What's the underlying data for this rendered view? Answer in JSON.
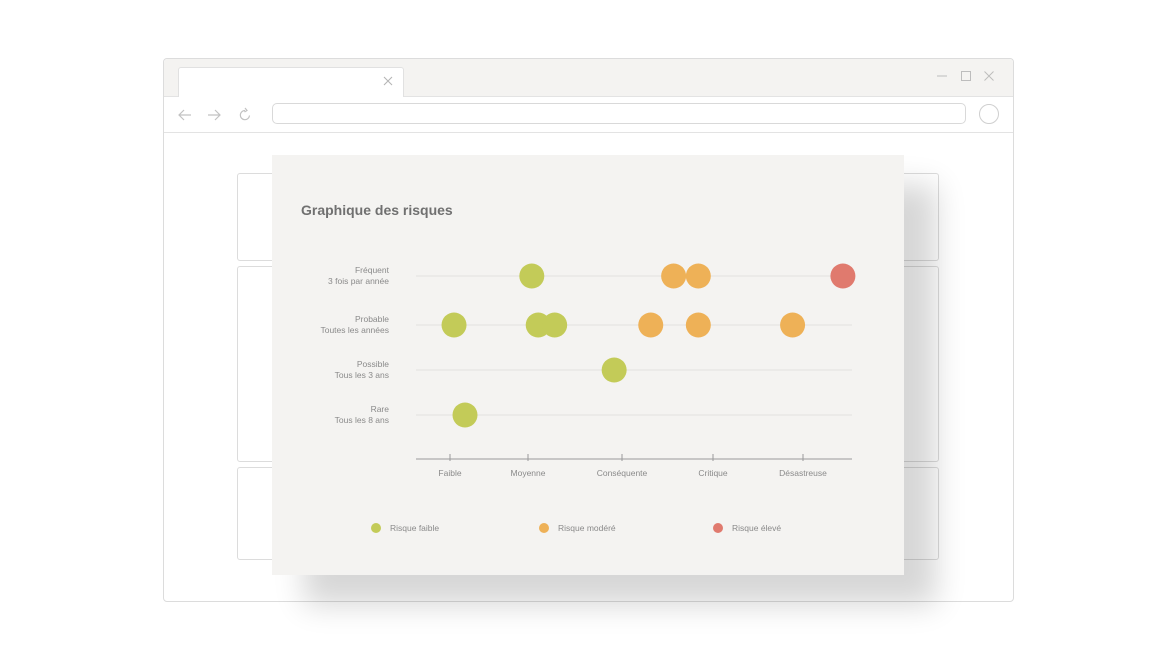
{
  "browser": {
    "icons": [
      "close-icon",
      "minimize-icon",
      "maximize-icon",
      "back-arrow-icon",
      "forward-arrow-icon",
      "reload-icon",
      "profile-icon"
    ]
  },
  "colors": {
    "low": "#c3cb58",
    "moderate": "#eeb157",
    "high": "#e07a6e",
    "grid": "#e2e1df",
    "axis": "#9a9a9a",
    "card_bg": "#f4f3f1"
  },
  "chart_data": {
    "type": "scatter",
    "title": "Graphique des risques",
    "x_categories": [
      "Faible",
      "Moyenne",
      "Conséquente",
      "Critique",
      "Désastreuse"
    ],
    "y_categories": [
      {
        "line1": "Fréquent",
        "line2": "3 fois par année"
      },
      {
        "line1": "Probable",
        "line2": "Toutes les années"
      },
      {
        "line1": "Possible",
        "line2": "Tous les 3 ans"
      },
      {
        "line1": "Rare",
        "line2": "Tous les 8 ans"
      }
    ],
    "xlim": [
      0,
      5
    ],
    "series": [
      {
        "name": "Risque faible",
        "color": "#c3cb58",
        "points": [
          {
            "x": 1.2,
            "y": "Fréquent"
          },
          {
            "x": 0.35,
            "y": "Probable"
          },
          {
            "x": 1.27,
            "y": "Probable"
          },
          {
            "x": 1.45,
            "y": "Probable"
          },
          {
            "x": 2.1,
            "y": "Possible"
          },
          {
            "x": 0.47,
            "y": "Rare"
          }
        ]
      },
      {
        "name": "Risque modéré",
        "color": "#eeb157",
        "points": [
          {
            "x": 2.75,
            "y": "Fréquent"
          },
          {
            "x": 3.02,
            "y": "Fréquent"
          },
          {
            "x": 2.5,
            "y": "Probable"
          },
          {
            "x": 3.02,
            "y": "Probable"
          },
          {
            "x": 4.05,
            "y": "Probable"
          }
        ]
      },
      {
        "name": "Risque élevé",
        "color": "#e07a6e",
        "points": [
          {
            "x": 4.6,
            "y": "Fréquent"
          }
        ]
      }
    ],
    "legend": [
      "Risque faible",
      "Risque modéré",
      "Risque élevé"
    ],
    "legend_position": "bottom",
    "grid": true
  }
}
